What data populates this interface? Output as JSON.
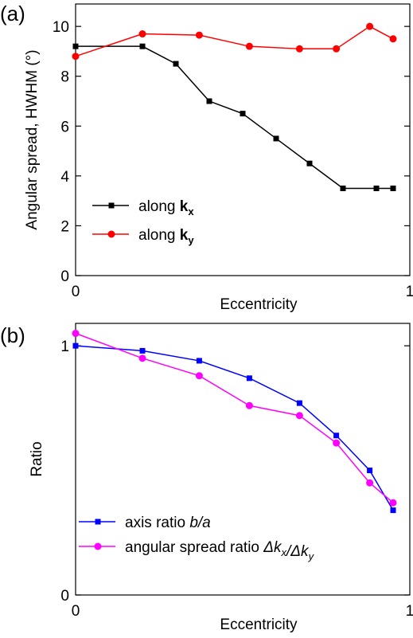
{
  "chart_data": [
    {
      "type": "line",
      "panel_label": "(a)",
      "xlabel": "Eccentricity",
      "ylabel": "Angular spread, HWHM (°)",
      "xlim": [
        0,
        1
      ],
      "ylim": [
        0,
        10.9
      ],
      "xticks": [
        0,
        1
      ],
      "xtick_labels": [
        "0",
        "1"
      ],
      "yticks": [
        0,
        2,
        4,
        6,
        8,
        10
      ],
      "ytick_labels": [
        "0",
        "2",
        "4",
        "6",
        "8",
        "10"
      ],
      "legend_position": "lower-left",
      "series": [
        {
          "name_main": "along ",
          "name_bold": "k",
          "name_sub": "x",
          "color": "#000000",
          "marker": "square",
          "x": [
            0.0,
            0.2,
            0.3,
            0.4,
            0.5,
            0.6,
            0.7,
            0.8,
            0.9,
            0.95
          ],
          "y": [
            9.2,
            9.2,
            8.5,
            7.0,
            6.5,
            5.5,
            4.5,
            3.5,
            3.5,
            3.5
          ]
        },
        {
          "name_main": "along ",
          "name_bold": "k",
          "name_sub": "y",
          "color": "#ff0000",
          "marker": "circle",
          "x": [
            0.0,
            0.2,
            0.37,
            0.52,
            0.67,
            0.78,
            0.88,
            0.95
          ],
          "y": [
            8.8,
            9.7,
            9.65,
            9.2,
            9.1,
            9.1,
            10.0,
            9.5
          ]
        }
      ]
    },
    {
      "type": "line",
      "panel_label": "(b)",
      "xlabel": "Eccentricity",
      "ylabel": "Ratio",
      "xlim": [
        0,
        1
      ],
      "ylim": [
        0,
        1.09
      ],
      "xticks": [
        0,
        1
      ],
      "xtick_labels": [
        "0",
        "1"
      ],
      "yticks": [
        0,
        1
      ],
      "ytick_labels": [
        "0",
        "1"
      ],
      "legend_position": "lower-left",
      "series": [
        {
          "name_main": "axis ratio ",
          "name_italic": "b/a",
          "color": "#0000ff",
          "marker": "square",
          "x": [
            0.0,
            0.2,
            0.37,
            0.52,
            0.67,
            0.78,
            0.88,
            0.95
          ],
          "y": [
            1.0,
            0.98,
            0.94,
            0.87,
            0.77,
            0.64,
            0.5,
            0.34
          ]
        },
        {
          "name_main": "angular spread ratio ",
          "name_italic": "Δk_x/Δk_y",
          "color": "#ff00ff",
          "marker": "circle",
          "x": [
            0.0,
            0.2,
            0.37,
            0.52,
            0.67,
            0.78,
            0.88,
            0.95
          ],
          "y": [
            1.05,
            0.95,
            0.88,
            0.76,
            0.72,
            0.61,
            0.45,
            0.37
          ]
        }
      ]
    }
  ]
}
